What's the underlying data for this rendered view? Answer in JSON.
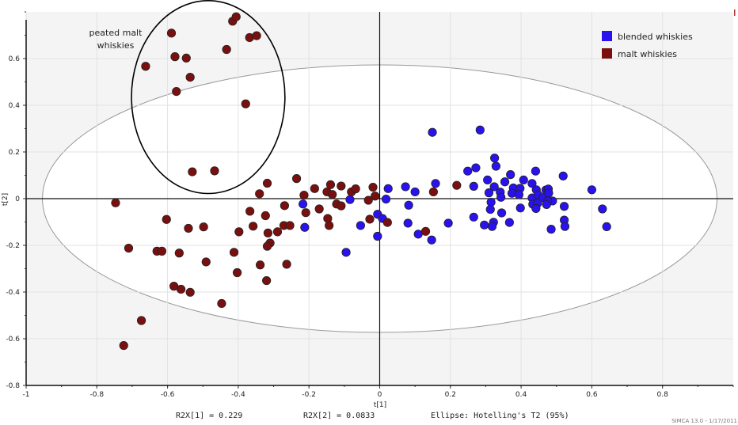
{
  "chart_data": {
    "type": "scatter",
    "title": "",
    "xlabel": "t[1]",
    "ylabel": "t[2]",
    "xlim": [
      -1,
      1.0
    ],
    "ylim": [
      -0.8,
      0.8
    ],
    "xticks": [
      -1,
      -0.8,
      -0.6,
      -0.4,
      -0.2,
      0,
      0.2,
      0.4,
      0.6,
      0.8
    ],
    "xtick_labels": [
      "-1",
      "-0.8",
      "-0.6",
      "-0.4",
      "-0.2",
      "0",
      "0.2",
      "0.4",
      "0.6",
      "0.8"
    ],
    "yticks": [
      -0.8,
      -0.6,
      -0.4,
      -0.2,
      0,
      0.2,
      0.4,
      0.6
    ],
    "ytick_labels": [
      "-0.8",
      "-0.6",
      "-0.4",
      "-0.2",
      "0",
      "0.2",
      "0.4",
      "0.6"
    ],
    "grid": true,
    "legend_position": "top-right",
    "hotelling_ellipse": {
      "center": [
        0,
        0
      ],
      "semi_axes": [
        0.954,
        0.573
      ]
    },
    "annotation": {
      "text_line1": "peated  malt",
      "text_line2": "whiskies",
      "ellipse_center": [
        -0.485,
        0.435
      ],
      "ellipse_semi_axes": [
        0.217,
        0.413
      ]
    },
    "series": [
      {
        "name": "blended whiskies",
        "color": "#2a12f0",
        "points": [
          [
            -0.217,
            -0.023
          ],
          [
            -0.212,
            -0.123
          ],
          [
            -0.084,
            -0.004
          ],
          [
            -0.054,
            -0.115
          ],
          [
            -0.095,
            -0.23
          ],
          [
            -0.006,
            -0.067
          ],
          [
            -0.006,
            -0.161
          ],
          [
            0.149,
            0.284
          ],
          [
            0.284,
            0.294
          ],
          [
            0.325,
            0.174
          ],
          [
            0.329,
            0.139
          ],
          [
            0.249,
            0.118
          ],
          [
            0.272,
            0.132
          ],
          [
            0.37,
            0.103
          ],
          [
            0.441,
            0.118
          ],
          [
            0.519,
            0.097
          ],
          [
            0.305,
            0.08
          ],
          [
            0.354,
            0.072
          ],
          [
            0.407,
            0.08
          ],
          [
            0.431,
            0.065
          ],
          [
            0.158,
            0.065
          ],
          [
            0.266,
            0.053
          ],
          [
            0.324,
            0.051
          ],
          [
            0.024,
            0.043
          ],
          [
            0.073,
            0.051
          ],
          [
            0.1,
            0.029
          ],
          [
            0.6,
            0.038
          ],
          [
            0.378,
            0.046
          ],
          [
            0.397,
            0.044
          ],
          [
            0.443,
            0.038
          ],
          [
            0.47,
            0.037
          ],
          [
            0.477,
            0.041
          ],
          [
            0.309,
            0.025
          ],
          [
            0.341,
            0.028
          ],
          [
            0.374,
            0.023
          ],
          [
            0.394,
            0.017
          ],
          [
            0.343,
            0.006
          ],
          [
            0.431,
            0.003
          ],
          [
            0.448,
            0.016
          ],
          [
            0.462,
            0.004
          ],
          [
            0.478,
            0.024
          ],
          [
            0.489,
            -0.01
          ],
          [
            0.475,
            -0.01
          ],
          [
            0.018,
            -0.002
          ],
          [
            0.315,
            -0.015
          ],
          [
            0.433,
            -0.024
          ],
          [
            0.447,
            -0.019
          ],
          [
            0.472,
            -0.025
          ],
          [
            0.082,
            -0.028
          ],
          [
            0.522,
            -0.033
          ],
          [
            0.313,
            -0.046
          ],
          [
            0.398,
            -0.04
          ],
          [
            0.442,
            -0.042
          ],
          [
            0.63,
            -0.044
          ],
          [
            0.008,
            -0.085
          ],
          [
            0.345,
            -0.061
          ],
          [
            0.266,
            -0.079
          ],
          [
            0.522,
            -0.092
          ],
          [
            0.08,
            -0.105
          ],
          [
            0.194,
            -0.105
          ],
          [
            0.322,
            -0.101
          ],
          [
            0.367,
            -0.102
          ],
          [
            0.296,
            -0.113
          ],
          [
            0.318,
            -0.119
          ],
          [
            0.524,
            -0.119
          ],
          [
            0.642,
            -0.12
          ],
          [
            0.485,
            -0.131
          ],
          [
            0.109,
            -0.152
          ],
          [
            0.147,
            -0.177
          ]
        ]
      },
      {
        "name": "malt whiskies",
        "color": "#7a0f0f",
        "points": [
          [
            -0.747,
            -0.018
          ],
          [
            -0.662,
            0.567
          ],
          [
            -0.589,
            0.709
          ],
          [
            -0.579,
            0.608
          ],
          [
            -0.547,
            0.602
          ],
          [
            -0.536,
            0.52
          ],
          [
            -0.575,
            0.459
          ],
          [
            -0.433,
            0.639
          ],
          [
            -0.416,
            0.76
          ],
          [
            -0.406,
            0.779
          ],
          [
            -0.368,
            0.69
          ],
          [
            -0.348,
            0.698
          ],
          [
            -0.379,
            0.406
          ],
          [
            -0.53,
            0.115
          ],
          [
            -0.467,
            0.119
          ],
          [
            -0.318,
            0.066
          ],
          [
            -0.34,
            0.021
          ],
          [
            -0.235,
            0.086
          ],
          [
            -0.214,
            0.015
          ],
          [
            -0.184,
            0.043
          ],
          [
            -0.149,
            0.029
          ],
          [
            -0.139,
            0.06
          ],
          [
            -0.134,
            0.018
          ],
          [
            -0.109,
            0.054
          ],
          [
            -0.08,
            0.029
          ],
          [
            -0.068,
            0.042
          ],
          [
            -0.019,
            0.049
          ],
          [
            -0.013,
            0.011
          ],
          [
            -0.032,
            -0.007
          ],
          [
            -0.269,
            -0.03
          ],
          [
            -0.367,
            -0.054
          ],
          [
            -0.323,
            -0.073
          ],
          [
            -0.209,
            -0.06
          ],
          [
            -0.171,
            -0.044
          ],
          [
            -0.147,
            -0.085
          ],
          [
            -0.143,
            -0.115
          ],
          [
            -0.122,
            -0.023
          ],
          [
            -0.109,
            -0.031
          ],
          [
            -0.028,
            -0.088
          ],
          [
            -0.603,
            -0.089
          ],
          [
            -0.541,
            -0.127
          ],
          [
            -0.498,
            -0.121
          ],
          [
            -0.398,
            -0.142
          ],
          [
            -0.358,
            -0.118
          ],
          [
            -0.316,
            -0.147
          ],
          [
            -0.289,
            -0.142
          ],
          [
            -0.271,
            -0.115
          ],
          [
            -0.254,
            -0.115
          ],
          [
            -0.31,
            -0.19
          ],
          [
            -0.318,
            -0.204
          ],
          [
            -0.71,
            -0.212
          ],
          [
            -0.63,
            -0.225
          ],
          [
            -0.616,
            -0.225
          ],
          [
            -0.567,
            -0.233
          ],
          [
            -0.491,
            -0.271
          ],
          [
            -0.412,
            -0.23
          ],
          [
            -0.338,
            -0.284
          ],
          [
            -0.263,
            -0.281
          ],
          [
            -0.403,
            -0.317
          ],
          [
            -0.32,
            -0.351
          ],
          [
            -0.582,
            -0.375
          ],
          [
            -0.562,
            -0.388
          ],
          [
            -0.536,
            -0.401
          ],
          [
            -0.447,
            -0.449
          ],
          [
            -0.674,
            -0.522
          ],
          [
            -0.724,
            -0.629
          ],
          [
            0.022,
            -0.102
          ],
          [
            0.152,
            0.029
          ],
          [
            0.218,
            0.057
          ],
          [
            0.13,
            -0.14
          ]
        ]
      }
    ]
  },
  "footer": {
    "r2x1": "R2X[1] = 0.229",
    "r2x2": "R2X[2] = 0.0833",
    "ellipse_note": "Ellipse: Hotelling's T2 (95%)",
    "credit": "SIMCA 13.0 - 1/17/2011"
  }
}
